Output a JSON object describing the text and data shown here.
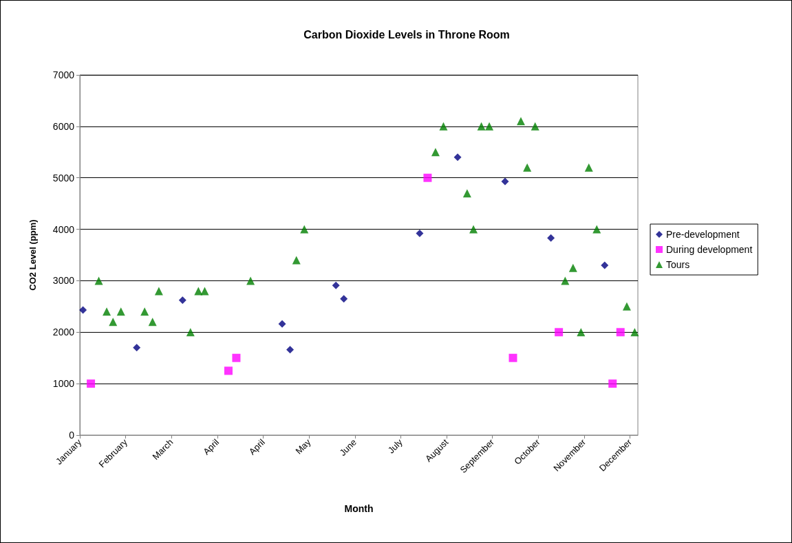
{
  "chart_data": {
    "type": "scatter",
    "title": "Carbon Dioxide Levels in Throne Room",
    "xlabel": "Month",
    "ylabel": "CO2 Level (ppm)",
    "xlim": [
      "--01-04",
      "--12-23"
    ],
    "xticks": [
      {
        "value": "--01-04",
        "label": "January"
      },
      {
        "value": "--02-02",
        "label": "February"
      },
      {
        "value": "--03-03",
        "label": "March"
      },
      {
        "value": "--04-01",
        "label": "April"
      },
      {
        "value": "--04-30",
        "label": "April"
      },
      {
        "value": "--05-29",
        "label": "May"
      },
      {
        "value": "--06-27",
        "label": "June"
      },
      {
        "value": "--07-26",
        "label": "July"
      },
      {
        "value": "--08-24",
        "label": "August"
      },
      {
        "value": "--09-22",
        "label": "September"
      },
      {
        "value": "--10-21",
        "label": "October"
      },
      {
        "value": "--11-19",
        "label": "November"
      },
      {
        "value": "--12-18",
        "label": "December"
      }
    ],
    "ylim": [
      0,
      7000
    ],
    "yticks": [
      0,
      1000,
      2000,
      3000,
      4000,
      5000,
      6000,
      7000
    ],
    "grid": "y",
    "legend": "right",
    "series": [
      {
        "name": "Pre-development",
        "color": "#000080",
        "marker": "diamond",
        "x": [
          "--01-06",
          "--02-09",
          "--03-10",
          "--05-12",
          "--05-17",
          "--06-15",
          "--06-20",
          "--08-07",
          "--08-31",
          "--09-30",
          "--10-29",
          "--12-02"
        ],
        "values": [
          2430,
          1700,
          2620,
          2160,
          1660,
          2910,
          2650,
          3920,
          5400,
          4930,
          3830,
          3300
        ]
      },
      {
        "name": "During development",
        "color": "#ff00ff",
        "marker": "square",
        "x": [
          "--01-11",
          "--04-08",
          "--04-13",
          "--08-12",
          "--10-05",
          "--11-03",
          "--12-07",
          "--12-12"
        ],
        "values": [
          1000,
          1250,
          1500,
          5000,
          1500,
          2000,
          1000,
          2000
        ]
      },
      {
        "name": "Tours",
        "color": "#008000",
        "marker": "triangle",
        "x": [
          "--01-16",
          "--01-21",
          "--01-25",
          "--01-30",
          "--02-14",
          "--02-19",
          "--02-23",
          "--03-15",
          "--03-20",
          "--03-24",
          "--04-22",
          "--05-21",
          "--05-26",
          "--08-17",
          "--08-22",
          "--09-06",
          "--09-10",
          "--09-15",
          "--09-20",
          "--10-10",
          "--10-14",
          "--10-19",
          "--11-07",
          "--11-12",
          "--11-17",
          "--11-22",
          "--11-27",
          "--12-16",
          "--12-21"
        ],
        "values": [
          3000,
          2400,
          2200,
          2400,
          2400,
          2200,
          2800,
          2000,
          2800,
          2800,
          3000,
          3400,
          4000,
          5500,
          6000,
          4700,
          4000,
          6000,
          6000,
          6100,
          5200,
          6000,
          3000,
          3250,
          2000,
          5200,
          4000,
          2500,
          2000
        ]
      }
    ]
  }
}
